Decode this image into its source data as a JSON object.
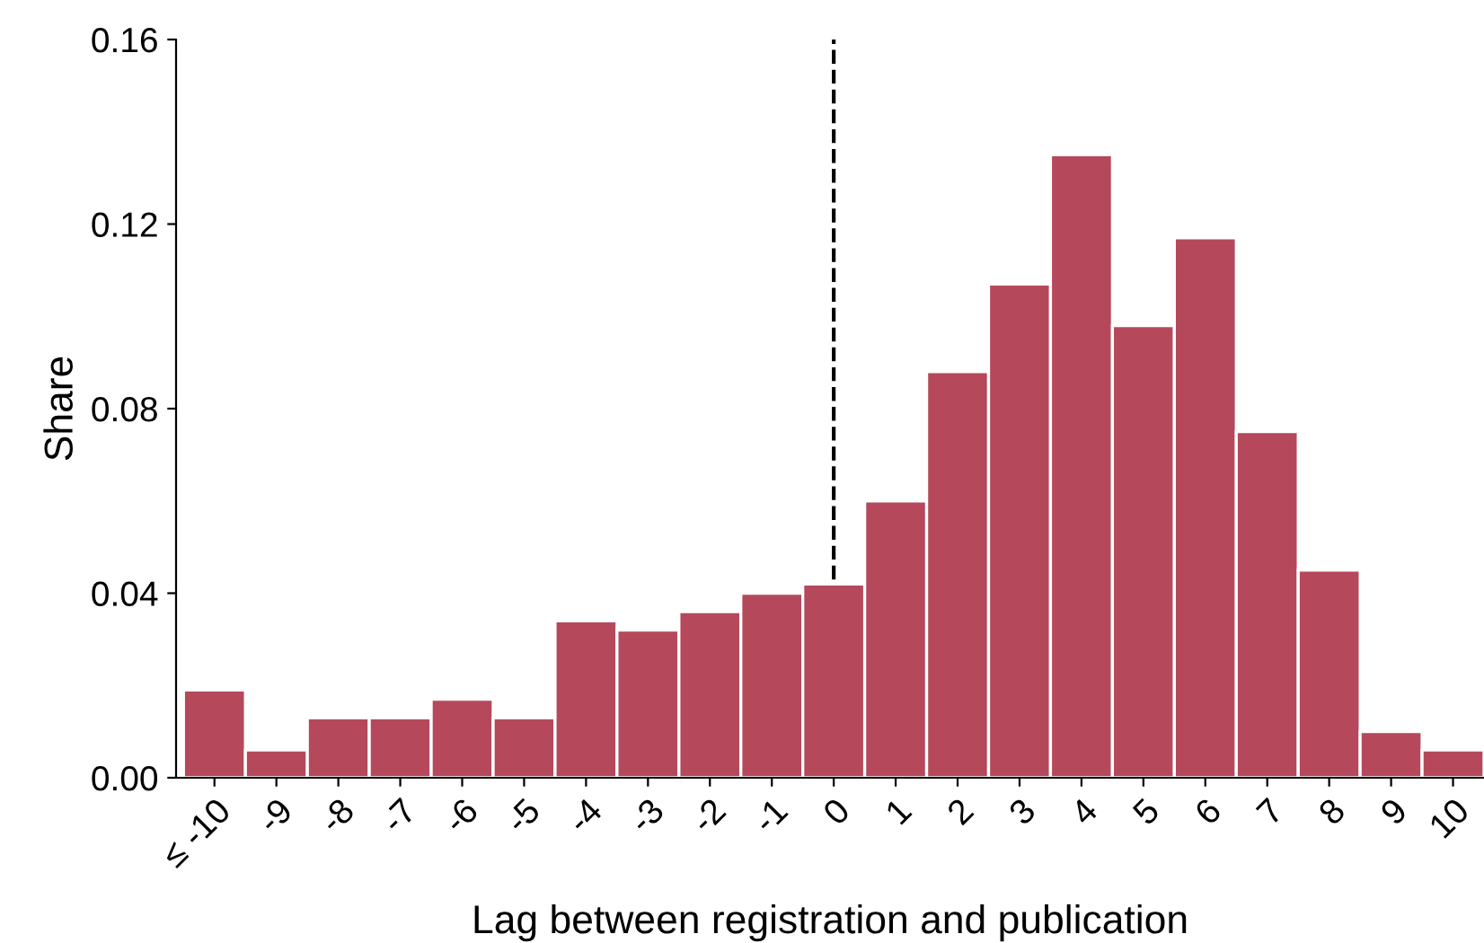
{
  "chart_data": {
    "type": "bar",
    "xlabel": "Lag between registration and publication",
    "ylabel": "Share",
    "categories": [
      "≤ -10",
      "-9",
      "-8",
      "-7",
      "-6",
      "-5",
      "-4",
      "-3",
      "-2",
      "-1",
      "0",
      "1",
      "2",
      "3",
      "4",
      "5",
      "6",
      "7",
      "8",
      "9",
      "10"
    ],
    "values": [
      0.019,
      0.006,
      0.013,
      0.013,
      0.017,
      0.013,
      0.034,
      0.032,
      0.036,
      0.04,
      0.042,
      0.06,
      0.088,
      0.107,
      0.135,
      0.098,
      0.117,
      0.075,
      0.045,
      0.01,
      0.006
    ],
    "color": "#b5485b",
    "ylim": [
      0,
      0.16
    ],
    "yticks": [
      {
        "value": 0,
        "label": "0.00"
      },
      {
        "value": 0.04,
        "label": "0.04"
      },
      {
        "value": 0.08,
        "label": "0.08"
      },
      {
        "value": 0.12,
        "label": "0.12"
      },
      {
        "value": 0.16,
        "label": "0.16"
      }
    ],
    "ref_lines": [
      {
        "axis": "x",
        "value": "0",
        "color": "#000000",
        "line_style": "dashed"
      }
    ],
    "grid": false,
    "legend": false
  }
}
